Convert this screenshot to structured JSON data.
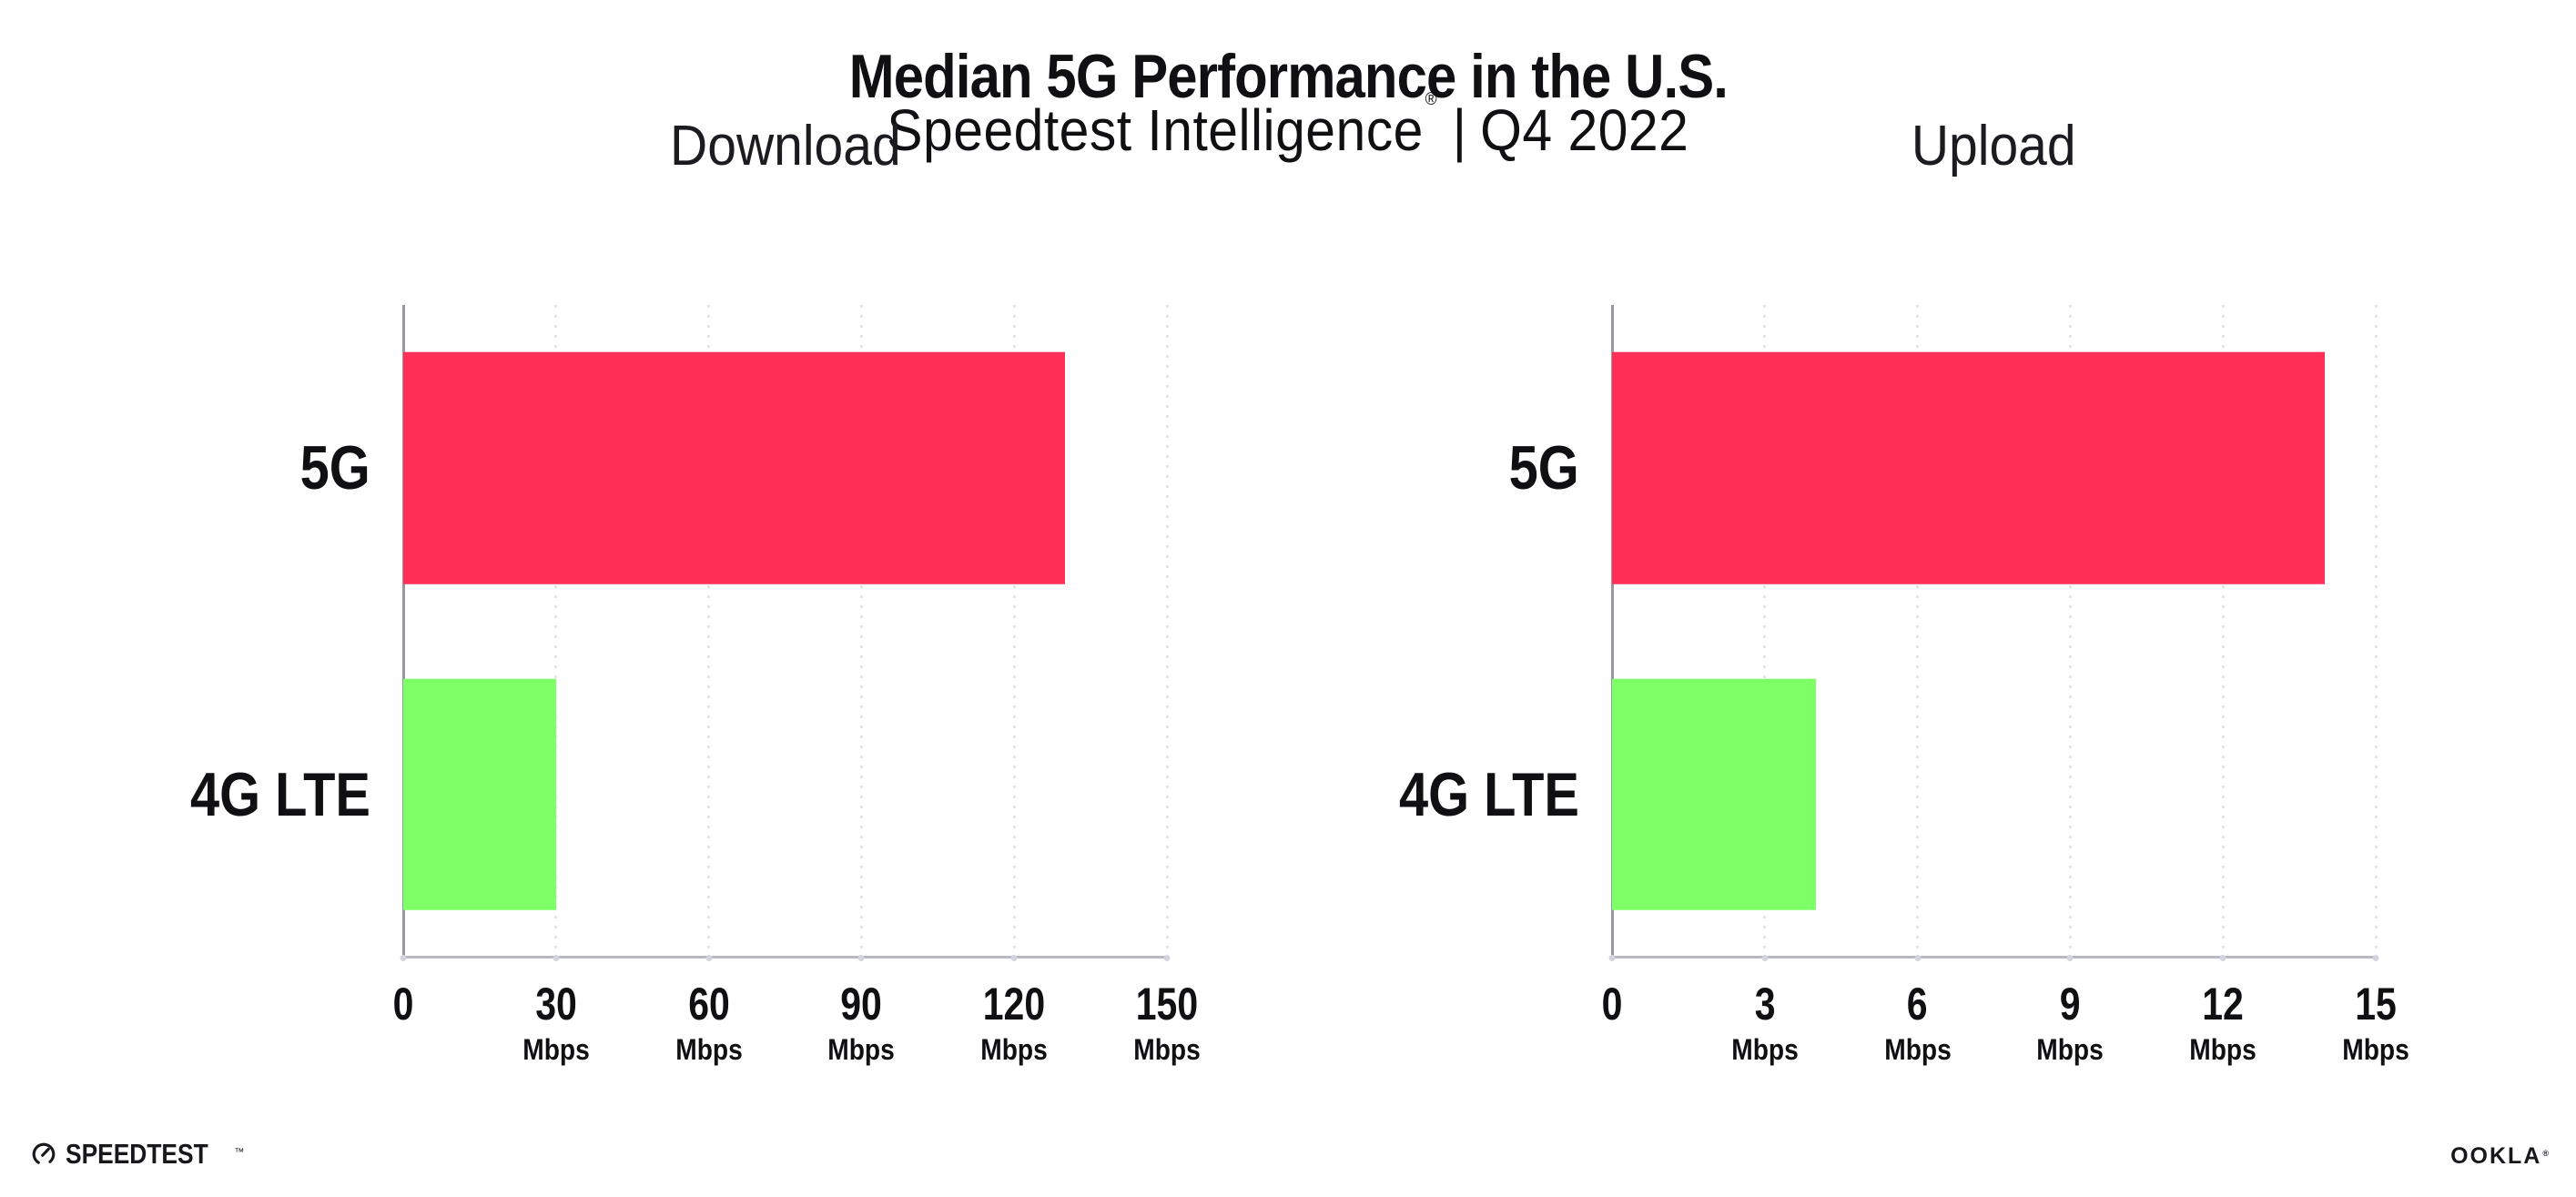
{
  "header": {
    "title": "Median 5G Performance in the U.S.",
    "subtitle": {
      "product": "Speedtest Intelligence",
      "registered_mark": "®",
      "separator": "|",
      "period": "Q4 2022"
    }
  },
  "chart_data": [
    {
      "type": "bar",
      "orientation": "horizontal",
      "title": "Download",
      "categories": [
        "5G",
        "4G LTE"
      ],
      "values": [
        130,
        30
      ],
      "unit": "Mbps",
      "xlim": [
        0,
        150
      ],
      "xticks": [
        0,
        30,
        60,
        90,
        120,
        150
      ],
      "bar_colors": [
        "#ff2e56",
        "#7dff66"
      ],
      "gridlines": "dotted vertical at each tick",
      "legend": "none"
    },
    {
      "type": "bar",
      "orientation": "horizontal",
      "title": "Upload",
      "categories": [
        "5G",
        "4G LTE"
      ],
      "values": [
        14,
        4
      ],
      "unit": "Mbps",
      "xlim": [
        0,
        15
      ],
      "xticks": [
        0,
        3,
        6,
        9,
        12,
        15
      ],
      "bar_colors": [
        "#ff2e56",
        "#7dff66"
      ],
      "gridlines": "dotted vertical at each tick",
      "legend": "none"
    }
  ],
  "footer": {
    "speedtest": {
      "wordmark": "SPEEDTEST",
      "trademark": "™"
    },
    "ookla": {
      "wordmark": "OOKLA",
      "registered_mark": "®"
    }
  },
  "colors": {
    "bar_5g": "#ff2e56",
    "bar_4g_lte": "#7dff66",
    "text": "#101013",
    "x_axis": "#b8b8c0",
    "y_axis": "#97979f",
    "gridline": "#e4e4ee",
    "background": "#ffffff"
  }
}
